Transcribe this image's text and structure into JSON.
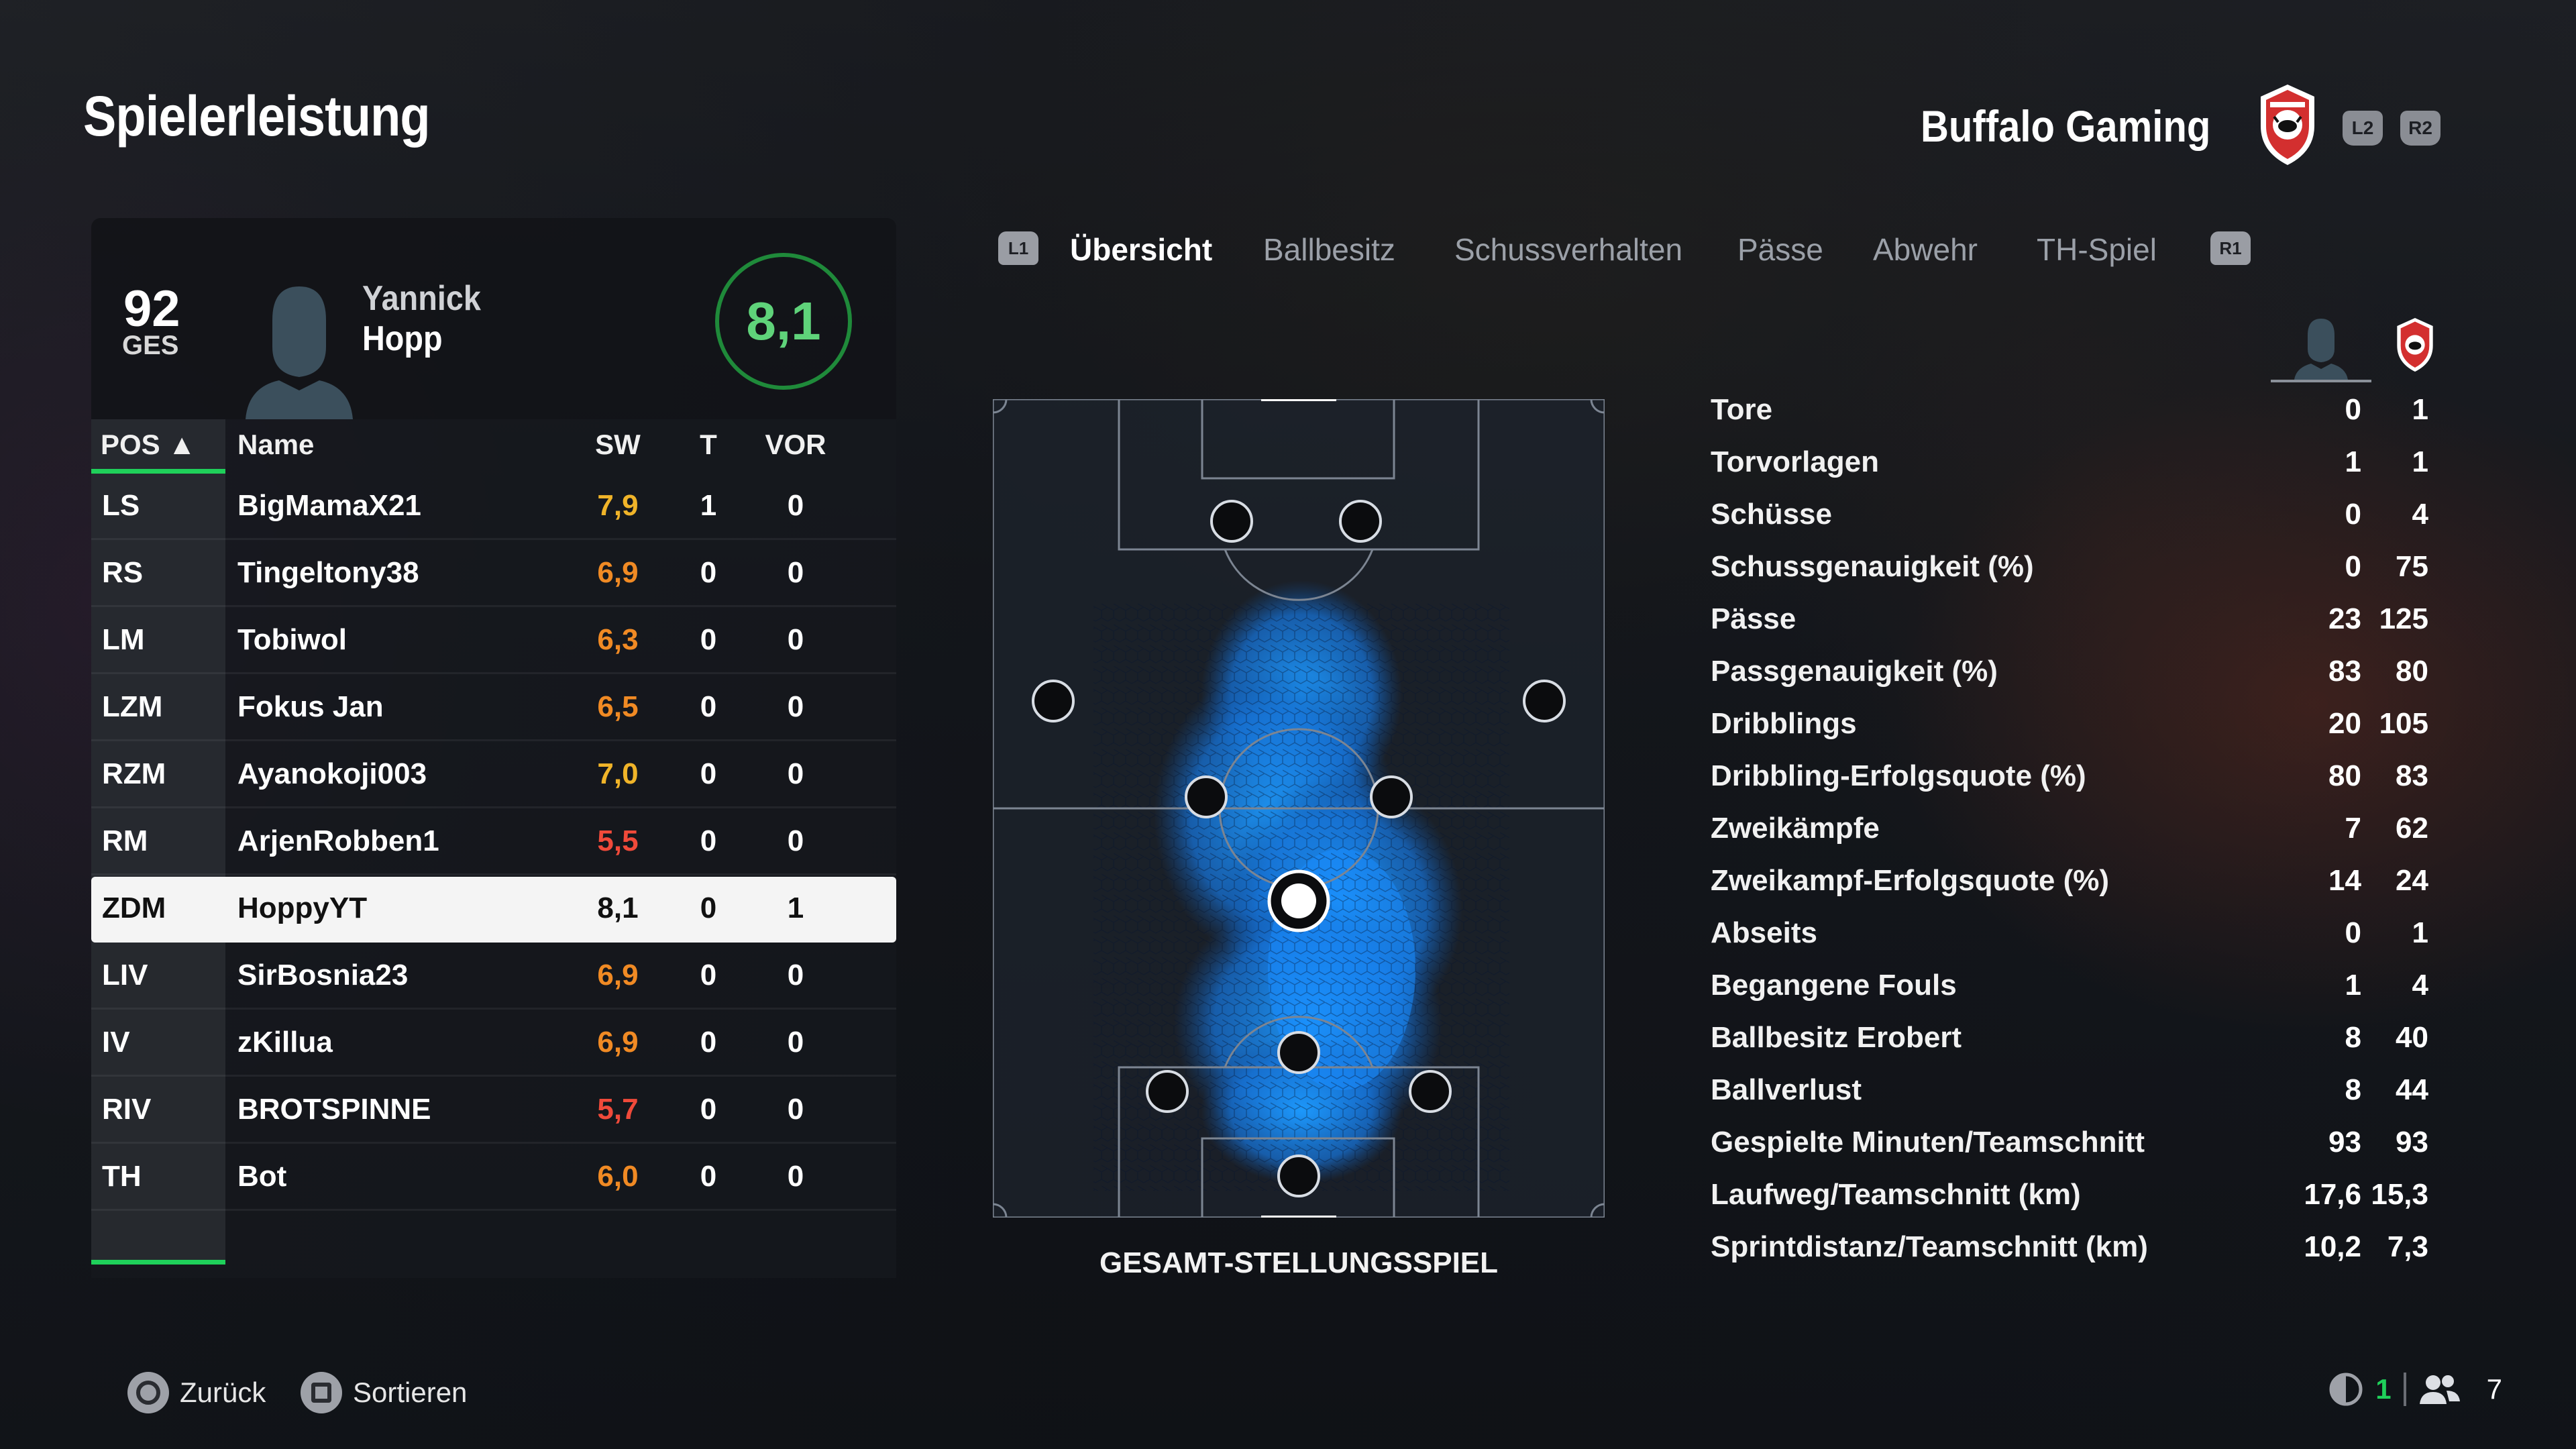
{
  "header": {
    "title": "Spielerleistung",
    "club_name": "Buffalo Gaming",
    "trigger_left": "L2",
    "trigger_right": "R2"
  },
  "player": {
    "ges_value": "92",
    "ges_label": "GES",
    "first_name": "Yannick",
    "last_name": "Hopp",
    "rating": "8,1"
  },
  "table": {
    "headers": {
      "pos": "POS ▲",
      "name": "Name",
      "sw": "SW",
      "t": "T",
      "vor": "VOR"
    },
    "rows": [
      {
        "pos": "LS",
        "name": "BigMamaX21",
        "sw": "7,9",
        "t": "1",
        "vor": "0",
        "sw_color": "#f0b429"
      },
      {
        "pos": "RS",
        "name": "Tingeltony38",
        "sw": "6,9",
        "t": "0",
        "vor": "0",
        "sw_color": "#f08a24"
      },
      {
        "pos": "LM",
        "name": "Tobiwol",
        "sw": "6,3",
        "t": "0",
        "vor": "0",
        "sw_color": "#f08a24"
      },
      {
        "pos": "LZM",
        "name": "Fokus Jan",
        "sw": "6,5",
        "t": "0",
        "vor": "0",
        "sw_color": "#f08a24"
      },
      {
        "pos": "RZM",
        "name": "Ayanokoji003",
        "sw": "7,0",
        "t": "0",
        "vor": "0",
        "sw_color": "#f0b429"
      },
      {
        "pos": "RM",
        "name": "ArjenRobben1",
        "sw": "5,5",
        "t": "0",
        "vor": "0",
        "sw_color": "#f04a3a"
      },
      {
        "pos": "ZDM",
        "name": "HoppyYT",
        "sw": "8,1",
        "t": "0",
        "vor": "1",
        "sw_color": "#111111"
      },
      {
        "pos": "LIV",
        "name": "SirBosnia23",
        "sw": "6,9",
        "t": "0",
        "vor": "0",
        "sw_color": "#f08a24"
      },
      {
        "pos": "IV",
        "name": "zKillua",
        "sw": "6,9",
        "t": "0",
        "vor": "0",
        "sw_color": "#f08a24"
      },
      {
        "pos": "RIV",
        "name": "BROTSPINNE",
        "sw": "5,7",
        "t": "0",
        "vor": "0",
        "sw_color": "#f04a3a"
      },
      {
        "pos": "TH",
        "name": "Bot",
        "sw": "6,0",
        "t": "0",
        "vor": "0",
        "sw_color": "#f08a24"
      }
    ],
    "selected_index": 6
  },
  "tabs": {
    "left_button": "L1",
    "right_button": "R1",
    "items": [
      "Übersicht",
      "Ballbesitz",
      "Schussverhalten",
      "Pässe",
      "Abwehr",
      "TH-Spiel"
    ],
    "active_index": 0
  },
  "pitch": {
    "caption": "GESAMT-STELLUNGSSPIEL"
  },
  "stats": [
    {
      "label": "Tore",
      "player": "0",
      "team": "1"
    },
    {
      "label": "Torvorlagen",
      "player": "1",
      "team": "1"
    },
    {
      "label": "Schüsse",
      "player": "0",
      "team": "4"
    },
    {
      "label": "Schussgenauigkeit (%)",
      "player": "0",
      "team": "75"
    },
    {
      "label": "Pässe",
      "player": "23",
      "team": "125"
    },
    {
      "label": "Passgenauigkeit (%)",
      "player": "83",
      "team": "80"
    },
    {
      "label": "Dribblings",
      "player": "20",
      "team": "105"
    },
    {
      "label": "Dribbling-Erfolgsquote (%)",
      "player": "80",
      "team": "83"
    },
    {
      "label": "Zweikämpfe",
      "player": "7",
      "team": "62"
    },
    {
      "label": "Zweikampf-Erfolgsquote (%)",
      "player": "14",
      "team": "24"
    },
    {
      "label": "Abseits",
      "player": "0",
      "team": "1"
    },
    {
      "label": "Begangene Fouls",
      "player": "1",
      "team": "4"
    },
    {
      "label": "Ballbesitz Erobert",
      "player": "8",
      "team": "40"
    },
    {
      "label": "Ballverlust",
      "player": "8",
      "team": "44"
    },
    {
      "label": "Gespielte Minuten/Teamschnitt",
      "player": "93",
      "team": "93"
    },
    {
      "label": "Laufweg/Teamschnitt (km)",
      "player": "17,6",
      "team": "15,3"
    },
    {
      "label": "Sprintdistanz/Teamschnitt (km)",
      "player": "10,2",
      "team": "7,3"
    }
  ],
  "footer": {
    "back_label": "Zurück",
    "sort_label": "Sortieren",
    "count_a": "1",
    "count_b": "7"
  },
  "colors": {
    "accent_green": "#1fd05a",
    "rating_green": "#5fd37a",
    "heat_blue": "#1a8cff",
    "club_red": "#d32f2f"
  }
}
